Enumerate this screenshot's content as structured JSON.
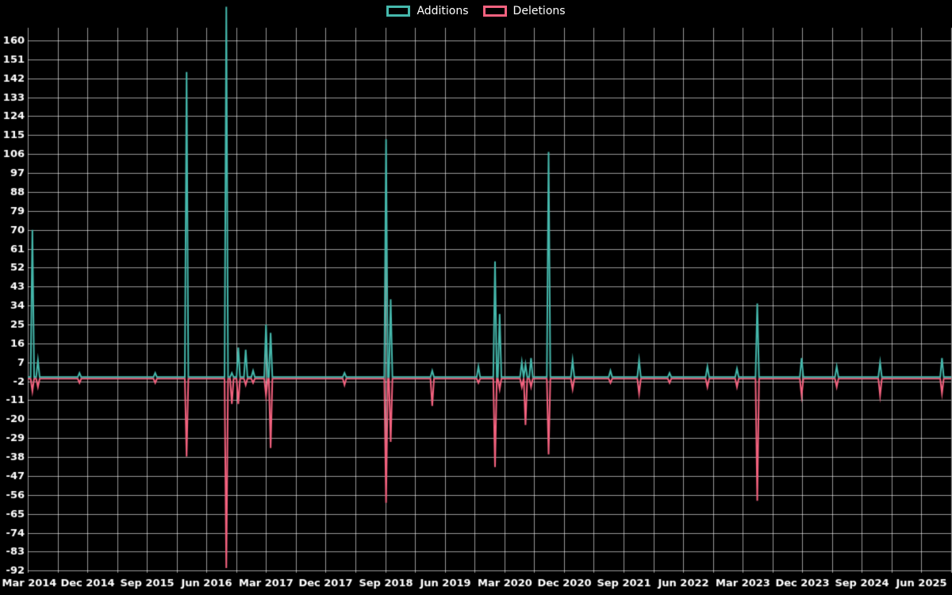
{
  "colors": {
    "background": "#000000",
    "grid": "rgba(255,255,255,0.60)",
    "text": "#ffffff",
    "additions": "#45b8ac",
    "deletions": "#f4627f"
  },
  "legend": {
    "additions_label": "Additions",
    "deletions_label": "Deletions"
  },
  "chart_data": {
    "type": "line",
    "title": "",
    "xlabel": "",
    "ylabel": "",
    "grid": true,
    "legend_position": "top-center",
    "ylim": [
      -93,
      166
    ],
    "y_ticks": [
      160,
      151,
      142,
      133,
      124,
      115,
      106,
      97,
      88,
      79,
      70,
      61,
      52,
      43,
      34,
      25,
      16,
      7,
      -2,
      -11,
      -20,
      -29,
      -38,
      -47,
      -56,
      -65,
      -74,
      -83,
      -92
    ],
    "x_tick_labels": [
      "Mar 2014",
      "Dec 2014",
      "Sep 2015",
      "Jun 2016",
      "Mar 2017",
      "Dec 2017",
      "Sep 2018",
      "Jun 2019",
      "Mar 2020",
      "Dec 2020",
      "Sep 2021",
      "Jun 2022",
      "Mar 2023",
      "Dec 2023",
      "Sep 2024",
      "Jun 2025"
    ],
    "x_gridline_count": 32,
    "series": [
      {
        "name": "Additions",
        "color": "#45b8ac",
        "baseline": 0
      },
      {
        "name": "Deletions",
        "color": "#f4627f",
        "baseline": 0
      }
    ],
    "spikes": [
      {
        "pos": 0.005,
        "add": 70,
        "del": -6
      },
      {
        "pos": 0.011,
        "add": 8,
        "del": -4
      },
      {
        "pos": 0.056,
        "add": 2,
        "del": -2
      },
      {
        "pos": 0.138,
        "add": 2,
        "del": -2
      },
      {
        "pos": 0.172,
        "add": 145,
        "del": -37
      },
      {
        "pos": 0.215,
        "add": 176,
        "del": -90
      },
      {
        "pos": 0.221,
        "add": 2,
        "del": -12
      },
      {
        "pos": 0.228,
        "add": 14,
        "del": -12
      },
      {
        "pos": 0.236,
        "add": 13,
        "del": -3
      },
      {
        "pos": 0.244,
        "add": 3,
        "del": -2
      },
      {
        "pos": 0.258,
        "add": 25,
        "del": -8
      },
      {
        "pos": 0.263,
        "add": 21,
        "del": -33
      },
      {
        "pos": 0.343,
        "add": 2,
        "del": -3
      },
      {
        "pos": 0.388,
        "add": 113,
        "del": -59
      },
      {
        "pos": 0.393,
        "add": 37,
        "del": -30
      },
      {
        "pos": 0.438,
        "add": 3,
        "del": -13
      },
      {
        "pos": 0.488,
        "add": 5,
        "del": -2
      },
      {
        "pos": 0.506,
        "add": 55,
        "del": -42
      },
      {
        "pos": 0.511,
        "add": 30,
        "del": -5
      },
      {
        "pos": 0.535,
        "add": 7,
        "del": -4
      },
      {
        "pos": 0.539,
        "add": 6,
        "del": -22
      },
      {
        "pos": 0.545,
        "add": 9,
        "del": -4
      },
      {
        "pos": 0.564,
        "add": 107,
        "del": -36
      },
      {
        "pos": 0.59,
        "add": 8,
        "del": -5
      },
      {
        "pos": 0.631,
        "add": 3,
        "del": -2
      },
      {
        "pos": 0.662,
        "add": 8,
        "del": -7
      },
      {
        "pos": 0.695,
        "add": 2,
        "del": -2
      },
      {
        "pos": 0.736,
        "add": 5,
        "del": -4
      },
      {
        "pos": 0.768,
        "add": 4,
        "del": -4
      },
      {
        "pos": 0.79,
        "add": 35,
        "del": -58
      },
      {
        "pos": 0.838,
        "add": 9,
        "del": -8
      },
      {
        "pos": 0.876,
        "add": 5,
        "del": -4
      },
      {
        "pos": 0.923,
        "add": 7,
        "del": -8
      },
      {
        "pos": 0.99,
        "add": 9,
        "del": -7
      }
    ]
  }
}
